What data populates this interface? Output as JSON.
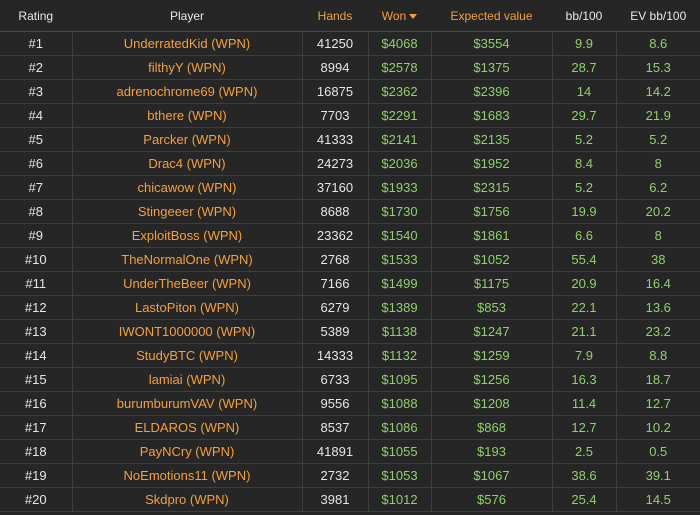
{
  "table": {
    "headers": {
      "rating": "Rating",
      "player": "Player",
      "hands": "Hands",
      "won": "Won",
      "expected": "Expected value",
      "bb100": "bb/100",
      "evbb100": "EV bb/100"
    },
    "sort_icon": "caret-down-icon",
    "rows": [
      {
        "rank": "#1",
        "player": "UnderratedKid (WPN)",
        "hands": "41250",
        "won": "$4068",
        "ev": "$3554",
        "bb": "9.9",
        "evbb": "8.6"
      },
      {
        "rank": "#2",
        "player": "filthyY (WPN)",
        "hands": "8994",
        "won": "$2578",
        "ev": "$1375",
        "bb": "28.7",
        "evbb": "15.3"
      },
      {
        "rank": "#3",
        "player": "adrenochrome69 (WPN)",
        "hands": "16875",
        "won": "$2362",
        "ev": "$2396",
        "bb": "14",
        "evbb": "14.2"
      },
      {
        "rank": "#4",
        "player": "bthere (WPN)",
        "hands": "7703",
        "won": "$2291",
        "ev": "$1683",
        "bb": "29.7",
        "evbb": "21.9"
      },
      {
        "rank": "#5",
        "player": "Parcker (WPN)",
        "hands": "41333",
        "won": "$2141",
        "ev": "$2135",
        "bb": "5.2",
        "evbb": "5.2"
      },
      {
        "rank": "#6",
        "player": "Drac4 (WPN)",
        "hands": "24273",
        "won": "$2036",
        "ev": "$1952",
        "bb": "8.4",
        "evbb": "8"
      },
      {
        "rank": "#7",
        "player": "chicawow (WPN)",
        "hands": "37160",
        "won": "$1933",
        "ev": "$2315",
        "bb": "5.2",
        "evbb": "6.2"
      },
      {
        "rank": "#8",
        "player": "Stingeeer (WPN)",
        "hands": "8688",
        "won": "$1730",
        "ev": "$1756",
        "bb": "19.9",
        "evbb": "20.2"
      },
      {
        "rank": "#9",
        "player": "ExploitBoss (WPN)",
        "hands": "23362",
        "won": "$1540",
        "ev": "$1861",
        "bb": "6.6",
        "evbb": "8"
      },
      {
        "rank": "#10",
        "player": "TheNormalOne (WPN)",
        "hands": "2768",
        "won": "$1533",
        "ev": "$1052",
        "bb": "55.4",
        "evbb": "38"
      },
      {
        "rank": "#11",
        "player": "UnderTheBeer (WPN)",
        "hands": "7166",
        "won": "$1499",
        "ev": "$1175",
        "bb": "20.9",
        "evbb": "16.4"
      },
      {
        "rank": "#12",
        "player": "LastoPiton (WPN)",
        "hands": "6279",
        "won": "$1389",
        "ev": "$853",
        "bb": "22.1",
        "evbb": "13.6"
      },
      {
        "rank": "#13",
        "player": "IWONT1000000 (WPN)",
        "hands": "5389",
        "won": "$1138",
        "ev": "$1247",
        "bb": "21.1",
        "evbb": "23.2"
      },
      {
        "rank": "#14",
        "player": "StudyBTC (WPN)",
        "hands": "14333",
        "won": "$1132",
        "ev": "$1259",
        "bb": "7.9",
        "evbb": "8.8"
      },
      {
        "rank": "#15",
        "player": "lamiai (WPN)",
        "hands": "6733",
        "won": "$1095",
        "ev": "$1256",
        "bb": "16.3",
        "evbb": "18.7"
      },
      {
        "rank": "#16",
        "player": "burumburumVAV (WPN)",
        "hands": "9556",
        "won": "$1088",
        "ev": "$1208",
        "bb": "11.4",
        "evbb": "12.7"
      },
      {
        "rank": "#17",
        "player": "ELDAROS (WPN)",
        "hands": "8537",
        "won": "$1086",
        "ev": "$868",
        "bb": "12.7",
        "evbb": "10.2"
      },
      {
        "rank": "#18",
        "player": "PayNCry (WPN)",
        "hands": "41891",
        "won": "$1055",
        "ev": "$193",
        "bb": "2.5",
        "evbb": "0.5"
      },
      {
        "rank": "#19",
        "player": "NoEmotions11 (WPN)",
        "hands": "2732",
        "won": "$1053",
        "ev": "$1067",
        "bb": "38.6",
        "evbb": "39.1"
      },
      {
        "rank": "#20",
        "player": "Skdpro (WPN)",
        "hands": "3981",
        "won": "$1012",
        "ev": "$576",
        "bb": "25.4",
        "evbb": "14.5"
      }
    ]
  }
}
